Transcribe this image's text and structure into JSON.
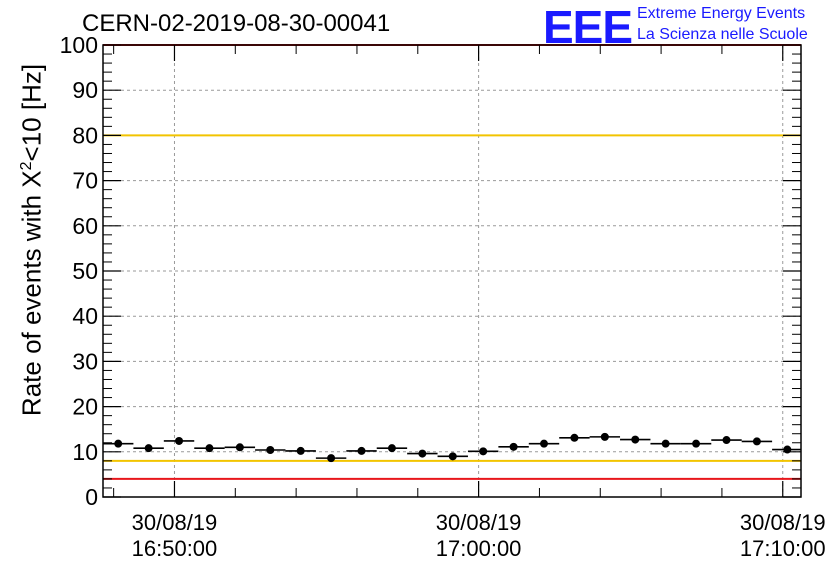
{
  "header": {
    "title": "CERN-02-2019-08-30-00041",
    "logo_mark": "EEE",
    "logo_line1": "Extreme Energy Events",
    "logo_line2": "La Scienza nelle Scuole"
  },
  "colors": {
    "threshold_red": "#e8161b",
    "threshold_yellow": "#f2c400",
    "logo_blue": "#1a1aff"
  },
  "chart_data": {
    "type": "scatter",
    "title": "CERN-02-2019-08-30-00041",
    "xlabel": "",
    "ylabel": "Rate of events with X²<10 [Hz]",
    "ylabel_parts": {
      "pre": "Rate of events with X",
      "sup": "2",
      "post": "<10 [Hz]"
    },
    "ylim": [
      0,
      100
    ],
    "yticks": [
      "0",
      "10",
      "20",
      "30",
      "40",
      "50",
      "60",
      "70",
      "80",
      "90",
      "100"
    ],
    "x_ticks": [
      {
        "date": "30/08/19",
        "time": "16:50:00",
        "minutes": 0
      },
      {
        "date": "30/08/19",
        "time": "17:00:00",
        "minutes": 10
      },
      {
        "date": "30/08/19",
        "time": "17:10:00",
        "minutes": 20
      }
    ],
    "xlim_minutes": [
      -2.35,
      20.6
    ],
    "bin_width_minutes": 1,
    "grid": true,
    "threshold_lines": [
      {
        "y": 4,
        "color": "red"
      },
      {
        "y": 8,
        "color": "yellow"
      },
      {
        "y": 80,
        "color": "yellow"
      },
      {
        "y": 100,
        "color": "red"
      }
    ],
    "series": [
      {
        "x_minutes": [
          -1.85,
          -0.85,
          0.15,
          1.15,
          2.15,
          3.15,
          4.15,
          5.15,
          6.15,
          7.15,
          8.15,
          9.15,
          10.15,
          11.15,
          12.15,
          13.15,
          14.15,
          15.15,
          16.15,
          17.15,
          18.15,
          19.15,
          20.15
        ],
        "values": [
          11.8,
          10.8,
          12.4,
          10.8,
          11.0,
          10.4,
          10.2,
          8.6,
          10.2,
          10.8,
          9.6,
          9.0,
          10.1,
          11.1,
          11.8,
          13.1,
          13.3,
          12.7,
          11.8,
          11.8,
          12.6,
          12.3,
          10.5
        ]
      }
    ]
  }
}
